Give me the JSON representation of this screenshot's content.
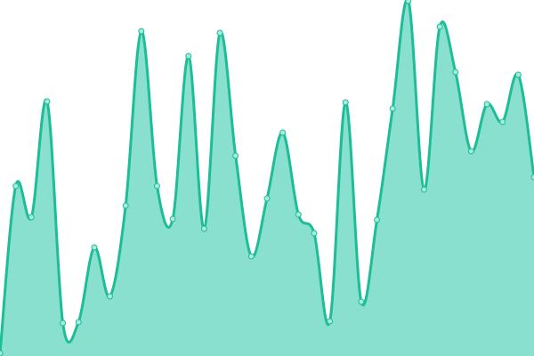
{
  "chart_data": {
    "type": "area",
    "title": "",
    "xlabel": "",
    "ylabel": "",
    "x": [
      0,
      1,
      2,
      3,
      4,
      5,
      6,
      7,
      8,
      9,
      10,
      11,
      12,
      13,
      14,
      15,
      16,
      17,
      18,
      19,
      20,
      21,
      22,
      23,
      24,
      25,
      26,
      27,
      28,
      29,
      30,
      31,
      32,
      33,
      34
    ],
    "values": [
      3,
      191,
      156,
      286,
      37,
      38,
      122,
      67,
      169,
      365,
      191,
      154,
      337,
      143,
      363,
      225,
      112,
      177,
      251,
      159,
      138,
      39,
      285,
      61,
      153,
      278,
      399,
      187,
      370,
      319,
      230,
      283,
      263,
      316,
      201
    ],
    "ylim": [
      0,
      400
    ],
    "xlim": [
      0,
      34
    ],
    "grid": false,
    "axes_visible": false,
    "curve": "smooth",
    "colors": {
      "line": "#1dbd98",
      "fill": "#8ae0cf",
      "marker_fill": "#a8eadc",
      "marker_stroke": "#1dbd98"
    }
  }
}
